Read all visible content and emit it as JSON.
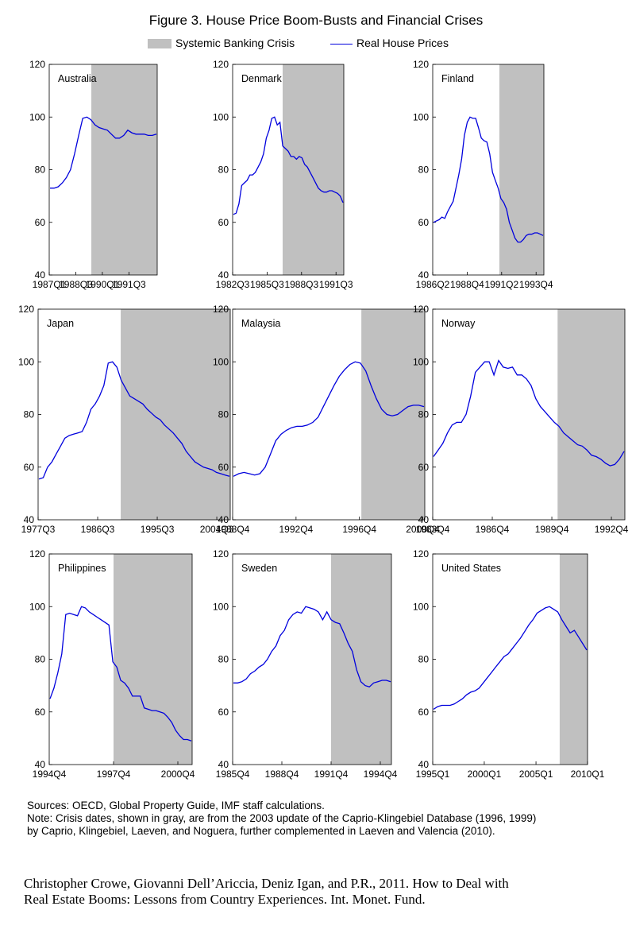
{
  "title": "Figure 3. House Price Boom-Busts and Financial Crises",
  "legend": {
    "crisis": "Systemic Banking Crisis",
    "prices": "Real House Prices"
  },
  "colors": {
    "crisis": "#c0c0c0",
    "line": "#0000dd"
  },
  "notes": [
    "Sources: OECD, Global Property Guide, IMF staff calculations.",
    "Note: Crisis dates, shown in gray, are from the 2003 update of the Caprio-Klingebiel Database (1996, 1999)",
    "by Caprio, Klingebiel, Laeven, and Noguera, further complemented in Laeven and Valencia (2010)."
  ],
  "citation": [
    "Christopher Crowe, Giovanni Dell’Ariccia, Deniz Igan, and P.R., 2011. How to Deal with",
    "Real Estate Booms: Lessons from Country Experiences. Int. Monet. Fund."
  ],
  "chart_data": [
    {
      "type": "line",
      "country": "Australia",
      "ylim": [
        40,
        120
      ],
      "yticks": [
        40,
        60,
        80,
        100,
        120
      ],
      "xlabels": [
        "1987Q1",
        "1988Q3",
        "1990Q1",
        "1991Q3"
      ],
      "xlabel_pos": [
        0,
        0.246,
        0.492,
        0.738
      ],
      "crisis": [
        0.39,
        1.0
      ],
      "values": [
        73,
        73,
        73.5,
        75,
        77,
        80,
        86,
        93,
        99.5,
        100,
        99,
        97,
        96,
        95.5,
        95,
        93.5,
        92,
        92,
        93,
        95,
        94,
        93.5,
        93.5,
        93.5,
        93,
        93,
        93.5
      ]
    },
    {
      "type": "line",
      "country": "Denmark",
      "ylim": [
        40,
        120
      ],
      "yticks": [
        40,
        60,
        80,
        100,
        120
      ],
      "xlabels": [
        "1982Q3",
        "1985Q3",
        "1988Q3",
        "1991Q3"
      ],
      "xlabel_pos": [
        0,
        0.31,
        0.62,
        0.93
      ],
      "crisis": [
        0.45,
        1.0
      ],
      "values": [
        63,
        63.5,
        67,
        74,
        75,
        76,
        78,
        78,
        79,
        81,
        83,
        86,
        92,
        95,
        99.5,
        100,
        97,
        98,
        89,
        88,
        87,
        85,
        85,
        84,
        85,
        84.5,
        82,
        81,
        79,
        77,
        75,
        73,
        72,
        71.5,
        71.5,
        72,
        72,
        71.5,
        71,
        70,
        67.5
      ]
    },
    {
      "type": "line",
      "country": "Finland",
      "ylim": [
        40,
        120
      ],
      "yticks": [
        40,
        60,
        80,
        100,
        120
      ],
      "xlabels": [
        "1986Q2",
        "1988Q4",
        "1991Q2",
        "1993Q4"
      ],
      "xlabel_pos": [
        0,
        0.31,
        0.62,
        0.93
      ],
      "crisis": [
        0.6,
        1.0
      ],
      "values": [
        60,
        60.5,
        61,
        62,
        61.5,
        64,
        66,
        68,
        73,
        78,
        84,
        93,
        98,
        100,
        99.5,
        99.5,
        96,
        92,
        91,
        90.5,
        86,
        79,
        76,
        73,
        69,
        67.5,
        65,
        60,
        57,
        54,
        52.5,
        52.5,
        53.5,
        55,
        55.5,
        55.5,
        56,
        56,
        55.5,
        55
      ]
    },
    {
      "type": "line",
      "country": "Japan",
      "ylim": [
        40,
        120
      ],
      "yticks": [
        40,
        60,
        80,
        100,
        120
      ],
      "xlabels": [
        "1977Q3",
        "1986Q3",
        "1995Q3",
        "2004Q3"
      ],
      "xlabel_pos": [
        0,
        0.31,
        0.62,
        0.93
      ],
      "crisis": [
        0.43,
        1.0
      ],
      "values": [
        55.5,
        56,
        60,
        62,
        65,
        68,
        71,
        72,
        72.5,
        73,
        73.5,
        77,
        82,
        84,
        87,
        91,
        99.5,
        100,
        98,
        93,
        90,
        87,
        86,
        85,
        84,
        82,
        80.5,
        79,
        78,
        76,
        74.5,
        73,
        71,
        69,
        66,
        64,
        62,
        61,
        60,
        59.5,
        59,
        58,
        57.5,
        57,
        56.5
      ]
    },
    {
      "type": "line",
      "country": "Malaysia",
      "ylim": [
        40,
        120
      ],
      "yticks": [
        40,
        60,
        80,
        100,
        120
      ],
      "xlabels": [
        "1988Q4",
        "1992Q4",
        "1996Q4",
        "2000Q4"
      ],
      "xlabel_pos": [
        0,
        0.33,
        0.66,
        0.99
      ],
      "crisis": [
        0.67,
        1.0
      ],
      "values": [
        56.5,
        57.5,
        58,
        57.5,
        57,
        57.5,
        60,
        65,
        70,
        72.5,
        74,
        75,
        75.5,
        75.5,
        76,
        77,
        79,
        83,
        87,
        91,
        94.5,
        97,
        99,
        100,
        99.5,
        96.5,
        91,
        86,
        82,
        80,
        79.5,
        80,
        81.5,
        83,
        83.5,
        83.5,
        83
      ]
    },
    {
      "type": "line",
      "country": "Norway",
      "ylim": [
        40,
        120
      ],
      "yticks": [
        40,
        60,
        80,
        100,
        120
      ],
      "xlabels": [
        "1983Q4",
        "1986Q4",
        "1989Q4",
        "1992Q4"
      ],
      "xlabel_pos": [
        0,
        0.31,
        0.62,
        0.93
      ],
      "crisis": [
        0.65,
        1.0
      ],
      "values": [
        64,
        66.5,
        69,
        73,
        76,
        77,
        77,
        80,
        87,
        96,
        98,
        100,
        100,
        95,
        100.5,
        98,
        97.5,
        98,
        95,
        95,
        93.5,
        91,
        86,
        83,
        81,
        79,
        77,
        75.5,
        73,
        71.5,
        70,
        68.5,
        68,
        66.5,
        64.5,
        64,
        63,
        61.5,
        60.5,
        61,
        63,
        66
      ]
    },
    {
      "type": "line",
      "country": "Philippines",
      "ylim": [
        40,
        120
      ],
      "yticks": [
        40,
        60,
        80,
        100,
        120
      ],
      "xlabels": [
        "1994Q4",
        "1997Q4",
        "2000Q4"
      ],
      "xlabel_pos": [
        0,
        0.45,
        0.9
      ],
      "crisis": [
        0.45,
        1.0
      ],
      "values": [
        65,
        69,
        75,
        82,
        97,
        97.5,
        97,
        96.5,
        100,
        99.5,
        98,
        97,
        96,
        95,
        94,
        93,
        79,
        77,
        72,
        71,
        69,
        66,
        66,
        66,
        61.5,
        61,
        60.5,
        60.5,
        60,
        59.5,
        58,
        56,
        53,
        51,
        49.5,
        49.5,
        49
      ]
    },
    {
      "type": "line",
      "country": "Sweden",
      "ylim": [
        40,
        120
      ],
      "yticks": [
        40,
        60,
        80,
        100,
        120
      ],
      "xlabels": [
        "1985Q4",
        "1988Q4",
        "1991Q4",
        "1994Q4"
      ],
      "xlabel_pos": [
        0,
        0.31,
        0.62,
        0.93
      ],
      "crisis": [
        0.62,
        1.0
      ],
      "values": [
        71,
        71,
        71.5,
        72.5,
        74.5,
        75.5,
        77,
        78,
        80,
        83,
        85,
        89,
        91,
        95,
        97,
        98,
        97.5,
        100,
        99.5,
        99,
        98,
        95,
        98,
        95,
        94,
        93.5,
        90,
        86,
        83,
        76,
        71.5,
        70,
        69.5,
        71,
        71.5,
        72,
        72,
        71.5
      ]
    },
    {
      "type": "line",
      "country": "United States",
      "ylim": [
        40,
        120
      ],
      "yticks": [
        40,
        60,
        80,
        100,
        120
      ],
      "xlabels": [
        "1995Q1",
        "2000Q1",
        "2005Q1",
        "2010Q1"
      ],
      "xlabel_pos": [
        0,
        0.333,
        0.667,
        1.0
      ],
      "crisis": [
        0.82,
        1.0
      ],
      "values": [
        61,
        62,
        62.5,
        62.5,
        62.5,
        63,
        64,
        65,
        66.5,
        67.5,
        68,
        69,
        71,
        73,
        75,
        77,
        79,
        81,
        82,
        84,
        86,
        88,
        90.5,
        93,
        95,
        97.5,
        98.5,
        99.5,
        100,
        99,
        98,
        95,
        92.5,
        90,
        91,
        88.5,
        86,
        83.5
      ]
    }
  ]
}
